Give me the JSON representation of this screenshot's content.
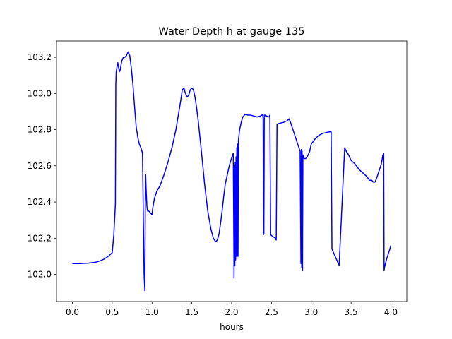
{
  "chart_data": {
    "type": "line",
    "title": "Water Depth h at gauge 135",
    "xlabel": "hours",
    "ylabel": "",
    "xlim": [
      -0.2,
      4.2
    ],
    "ylim": [
      101.85,
      103.29
    ],
    "grid": false,
    "x_ticks": [
      0.0,
      0.5,
      1.0,
      1.5,
      2.0,
      2.5,
      3.0,
      3.5,
      4.0
    ],
    "x_tick_labels": [
      "0.0",
      "0.5",
      "1.0",
      "1.5",
      "2.0",
      "2.5",
      "3.0",
      "3.5",
      "4.0"
    ],
    "y_ticks": [
      102.0,
      102.2,
      102.4,
      102.6,
      102.8,
      103.0,
      103.2
    ],
    "y_tick_labels": [
      "102.0",
      "102.2",
      "102.4",
      "102.6",
      "102.8",
      "103.0",
      "103.2"
    ],
    "series": [
      {
        "color": "#0000ff",
        "x": [
          0.0,
          0.1,
          0.2,
          0.3,
          0.35,
          0.4,
          0.45,
          0.5,
          0.52,
          0.54,
          0.545,
          0.55,
          0.57,
          0.59,
          0.6,
          0.62,
          0.64,
          0.66,
          0.68,
          0.7,
          0.72,
          0.74,
          0.76,
          0.78,
          0.8,
          0.82,
          0.84,
          0.86,
          0.88,
          0.9,
          0.91,
          0.915,
          0.92,
          0.925,
          0.93,
          0.935,
          0.94,
          0.945,
          0.96,
          1.0,
          1.01,
          1.03,
          1.06,
          1.1,
          1.15,
          1.2,
          1.25,
          1.3,
          1.33,
          1.36,
          1.38,
          1.4,
          1.42,
          1.44,
          1.46,
          1.48,
          1.5,
          1.52,
          1.54,
          1.56,
          1.58,
          1.62,
          1.66,
          1.7,
          1.74,
          1.77,
          1.8,
          1.82,
          1.84,
          1.86,
          1.88,
          1.9,
          1.92,
          1.95,
          1.97,
          1.99,
          2.02,
          2.03,
          2.035,
          2.04,
          2.045,
          2.05,
          2.055,
          2.06,
          2.065,
          2.07,
          2.075,
          2.08,
          2.085,
          2.09,
          2.1,
          2.12,
          2.14,
          2.16,
          2.18,
          2.2,
          2.24,
          2.28,
          2.32,
          2.36,
          2.38,
          2.39,
          2.395,
          2.4,
          2.405,
          2.41,
          2.415,
          2.42,
          2.44,
          2.47,
          2.48,
          2.49,
          2.5,
          2.55,
          2.56,
          2.57,
          2.6,
          2.65,
          2.7,
          2.72,
          2.74,
          2.77,
          2.8,
          2.83,
          2.86,
          2.87,
          2.875,
          2.88,
          2.885,
          2.89,
          2.895,
          2.9,
          2.91,
          2.93,
          2.95,
          2.98,
          3.0,
          3.05,
          3.1,
          3.15,
          3.2,
          3.25,
          3.26,
          3.27,
          3.3,
          3.35,
          3.42,
          3.43,
          3.44,
          3.47,
          3.5,
          3.55,
          3.6,
          3.65,
          3.7,
          3.73,
          3.76,
          3.78,
          3.8,
          3.82,
          3.85,
          3.88,
          3.9,
          3.91,
          3.915,
          3.92,
          3.95,
          3.98,
          4.0
        ],
        "y": [
          102.06,
          102.06,
          102.062,
          102.068,
          102.075,
          102.085,
          102.1,
          102.12,
          102.22,
          102.39,
          103.05,
          103.12,
          103.17,
          103.12,
          103.13,
          103.18,
          103.2,
          103.2,
          103.21,
          103.23,
          103.21,
          103.14,
          103.05,
          102.93,
          102.82,
          102.76,
          102.72,
          102.7,
          102.67,
          102.0,
          101.91,
          102.36,
          102.55,
          102.48,
          102.43,
          102.38,
          102.36,
          102.35,
          102.35,
          102.33,
          102.37,
          102.42,
          102.46,
          102.49,
          102.55,
          102.62,
          102.7,
          102.8,
          102.88,
          102.96,
          103.02,
          103.03,
          103.0,
          102.98,
          102.99,
          103.02,
          103.03,
          103.02,
          102.98,
          102.92,
          102.85,
          102.68,
          102.5,
          102.35,
          102.25,
          102.2,
          102.18,
          102.19,
          102.22,
          102.28,
          102.35,
          102.43,
          102.5,
          102.56,
          102.6,
          102.63,
          102.67,
          101.98,
          102.6,
          102.05,
          102.62,
          102.08,
          102.65,
          102.1,
          102.7,
          102.1,
          102.72,
          102.1,
          102.74,
          102.76,
          102.8,
          102.84,
          102.87,
          102.88,
          102.885,
          102.88,
          102.88,
          102.875,
          102.87,
          102.875,
          102.88,
          102.885,
          102.86,
          102.22,
          102.225,
          102.88,
          102.875,
          102.88,
          102.875,
          102.87,
          102.88,
          102.22,
          102.215,
          102.2,
          102.19,
          102.83,
          102.835,
          102.84,
          102.85,
          102.86,
          102.84,
          102.8,
          102.76,
          102.72,
          102.68,
          102.06,
          102.69,
          102.04,
          102.68,
          102.02,
          102.66,
          102.65,
          102.64,
          102.64,
          102.65,
          102.68,
          102.72,
          102.75,
          102.77,
          102.78,
          102.785,
          102.79,
          102.14,
          102.13,
          102.1,
          102.05,
          102.7,
          102.69,
          102.68,
          102.66,
          102.63,
          102.61,
          102.58,
          102.56,
          102.54,
          102.52,
          102.52,
          102.51,
          102.51,
          102.53,
          102.57,
          102.61,
          102.66,
          102.67,
          102.02,
          102.04,
          102.09,
          102.13,
          102.16
        ]
      }
    ]
  }
}
